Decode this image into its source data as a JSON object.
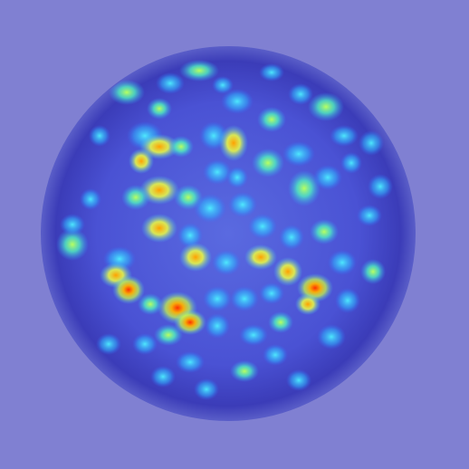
{
  "image": {
    "subject": "",
    "colormap": [
      "#000088",
      "#0000ff",
      "#00c0ff",
      "#40ffb0",
      "#ffff00",
      "#ff8000",
      "#ff0000"
    ],
    "background_color": "#7f7fd0",
    "disc_edge_color": "#3a3ab8",
    "disc_core_color": "#4f55d8"
  }
}
